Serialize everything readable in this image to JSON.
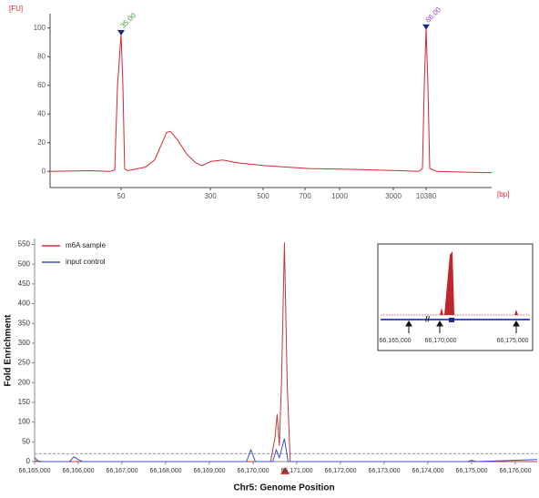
{
  "chart_data": [
    {
      "type": "line",
      "ylabel": "[FU]",
      "xlabel": "[bp]",
      "xlim": [
        20,
        20000
      ],
      "ylim": [
        -10,
        110
      ],
      "xticks": [
        50,
        300,
        500,
        700,
        1000,
        3000,
        10380
      ],
      "yticks": [
        0,
        20,
        40,
        60,
        80,
        100
      ],
      "x": [
        20,
        37,
        45,
        47.3,
        48.5,
        50,
        55,
        60,
        68,
        119,
        144,
        165,
        177,
        188,
        208,
        234,
        259,
        277,
        303,
        348,
        400,
        503,
        733,
        1237,
        4640,
        8740,
        9560,
        9970,
        10380,
        10647,
        10914,
        11980,
        20000
      ],
      "series": [
        {
          "color": "#d9272e",
          "values": [
            0,
            0.5,
            0,
            1,
            60,
            96,
            60,
            2,
            0.5,
            3,
            8,
            20,
            27,
            28,
            22,
            12,
            6,
            4,
            7,
            8,
            6,
            4,
            2,
            1.5,
            0.5,
            0,
            2,
            60,
            100,
            60,
            2,
            0,
            -1
          ]
        }
      ],
      "annotations": [
        {
          "text": "35.00",
          "x": 50,
          "y": 96,
          "color": "#2e9b2e"
        },
        {
          "text": "86.00",
          "x": 10380,
          "y": 100,
          "color": "#8a3fc9"
        }
      ]
    },
    {
      "type": "line",
      "ylabel": "Fold Enrichment",
      "xlabel": "Chr5: Genome Position",
      "xlim": [
        66165000,
        66176500
      ],
      "ylim": [
        0,
        565
      ],
      "xticks": [
        {
          "value": 66165000,
          "label": "66,165,000"
        },
        {
          "value": 66166000,
          "label": "66,166,000"
        },
        {
          "value": 66167000,
          "label": "66,167,000"
        },
        {
          "value": 66168000,
          "label": "66,168,000"
        },
        {
          "value": 66169000,
          "label": "66,169,000"
        },
        {
          "value": 66170000,
          "label": "66,170,000"
        },
        {
          "value": 66171000,
          "label": "66,171,000"
        },
        {
          "value": 66172000,
          "label": "66,172,000"
        },
        {
          "value": 66173000,
          "label": "66,173,000"
        },
        {
          "value": 66174000,
          "label": "66,174,000"
        },
        {
          "value": 66175000,
          "label": "66,175,000"
        },
        {
          "value": 66176000,
          "label": "66,176,000"
        }
      ],
      "yticks": [
        0,
        50,
        100,
        150,
        200,
        250,
        300,
        350,
        400,
        450,
        500,
        550
      ],
      "threshold": 20,
      "series": [
        {
          "name": "m6A sample",
          "color": "#c0393b",
          "x": [
            66165000,
            66165200,
            66169000,
            66170400,
            66170500,
            66170550,
            66170600,
            66170650,
            66170717,
            66170780,
            66170850,
            66174900,
            66175000,
            66175100,
            66176500
          ],
          "values": [
            2,
            0,
            0,
            0,
            60,
            120,
            40,
            200,
            555,
            200,
            0,
            0,
            3,
            0,
            0
          ]
        },
        {
          "name": "input control",
          "color": "#3d4fc4",
          "x": [
            66165000,
            66165100,
            66165800,
            66165900,
            66166000,
            66166100,
            66169850,
            66169950,
            66170050,
            66170450,
            66170530,
            66170600,
            66170717,
            66170800,
            66174950,
            66175000,
            66175100,
            66176500
          ],
          "values": [
            10,
            0,
            0,
            12,
            5,
            0,
            0,
            30,
            0,
            0,
            30,
            10,
            58,
            0,
            0,
            3,
            0,
            5
          ]
        }
      ],
      "inset": {
        "labels": [
          "66,165,000",
          "66,170,000",
          "66,175,000"
        ]
      }
    }
  ]
}
